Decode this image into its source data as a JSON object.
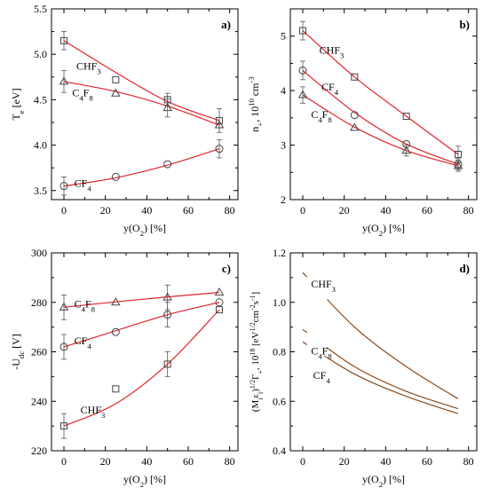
{
  "chart_data": [
    {
      "type": "scatter",
      "panel": "a)",
      "ylabel_main": "T",
      "ylabel_sub": "e",
      "ylabel_unit": " [eV]",
      "xlabel_main": "y(O",
      "xlabel_sub": "2",
      "xlabel_unit": ") [%]",
      "xlim": [
        -6,
        84
      ],
      "ylim": [
        3.4,
        5.5
      ],
      "xticks": [
        0,
        20,
        40,
        60,
        80
      ],
      "xtick_labels": [
        "0",
        "20",
        "40",
        "60",
        "80"
      ],
      "yticks": [
        3.5,
        4.0,
        4.5,
        5.0,
        5.5
      ],
      "ytick_labels": [
        "3.5",
        "4.0",
        "4.5",
        "5.0",
        "5.5"
      ],
      "series": [
        {
          "marker": "square",
          "label_main": "CHF",
          "label_sub": "3",
          "label_at": [
            6,
            4.83
          ],
          "x": [
            0,
            25,
            50,
            75
          ],
          "y": [
            5.15,
            4.72,
            4.5,
            4.27
          ],
          "err": [
            0.1,
            0,
            0.07,
            0.13
          ],
          "fit": [
            [
              0,
              5.15
            ],
            [
              25,
              4.8
            ],
            [
              50,
              4.48
            ],
            [
              75,
              4.27
            ]
          ]
        },
        {
          "marker": "triangle",
          "label_main": "C",
          "label_sub": "4",
          "label_main2": "F",
          "label_sub2": "8",
          "label_at": [
            4,
            4.54
          ],
          "x": [
            0,
            25,
            50,
            75
          ],
          "y": [
            4.7,
            4.57,
            4.41,
            4.22
          ],
          "err": [
            0.12,
            0,
            0.1,
            0
          ],
          "fit": [
            [
              0,
              4.7
            ],
            [
              25,
              4.59
            ],
            [
              50,
              4.43
            ],
            [
              75,
              4.22
            ]
          ]
        },
        {
          "marker": "circle",
          "label_main": "CF",
          "label_sub": "4",
          "label_at": [
            5,
            3.54
          ],
          "x": [
            0,
            25,
            50,
            75
          ],
          "y": [
            3.55,
            3.65,
            3.79,
            3.96
          ],
          "err": [
            0.1,
            0,
            0,
            0.1
          ],
          "fit": [
            [
              0,
              3.55
            ],
            [
              25,
              3.64
            ],
            [
              50,
              3.78
            ],
            [
              75,
              3.96
            ]
          ]
        }
      ]
    },
    {
      "type": "scatter",
      "panel": "b)",
      "ylabel_main": "n",
      "ylabel_sub": "+",
      "ylabel_unit": ", 10",
      "ylabel_sup": "10",
      "ylabel_unit2": " cm",
      "ylabel_sup2": "-3",
      "xlabel_main": "y(O",
      "xlabel_sub": "2",
      "xlabel_unit": ") [%]",
      "xlim": [
        -6,
        84
      ],
      "ylim": [
        2.0,
        5.5
      ],
      "xticks": [
        0,
        20,
        40,
        60,
        80
      ],
      "xtick_labels": [
        "0",
        "20",
        "40",
        "60",
        "80"
      ],
      "yticks": [
        2,
        3,
        4,
        5
      ],
      "ytick_labels": [
        "2",
        "3",
        "4",
        "5"
      ],
      "series": [
        {
          "marker": "square",
          "label_main": "CHF",
          "label_sub": "3",
          "label_at": [
            8,
            4.68
          ],
          "x": [
            0,
            25,
            50,
            75
          ],
          "y": [
            5.1,
            4.25,
            3.53,
            2.83
          ],
          "err": [
            0.17,
            0,
            0,
            0.15
          ],
          "fit": [
            [
              0,
              5.1
            ],
            [
              25,
              4.25
            ],
            [
              50,
              3.53
            ],
            [
              75,
              2.83
            ]
          ]
        },
        {
          "marker": "circle",
          "label_main": "CF",
          "label_sub": "4",
          "label_at": [
            9,
            4.0
          ],
          "x": [
            0,
            25,
            50,
            75
          ],
          "y": [
            4.37,
            3.55,
            3.02,
            2.65
          ],
          "err": [
            0.17,
            0,
            0,
            0.1
          ],
          "fit": [
            [
              0,
              4.37
            ],
            [
              25,
              3.6
            ],
            [
              50,
              3.02
            ],
            [
              75,
              2.65
            ]
          ]
        },
        {
          "marker": "triangle",
          "label_main": "C",
          "label_sub": "4",
          "label_main2": "F",
          "label_sub2": "8",
          "label_at": [
            4,
            3.5
          ],
          "x": [
            0,
            25,
            50,
            75
          ],
          "y": [
            3.92,
            3.32,
            2.9,
            2.62
          ],
          "err": [
            0.15,
            0,
            0.1,
            0.1
          ],
          "fit": [
            [
              0,
              3.92
            ],
            [
              25,
              3.33
            ],
            [
              50,
              2.9
            ],
            [
              75,
              2.62
            ]
          ]
        }
      ]
    },
    {
      "type": "scatter",
      "panel": "c)",
      "ylabel_main": "-U",
      "ylabel_sub": "dc",
      "ylabel_unit": " [V]",
      "xlabel_main": "y(O",
      "xlabel_sub": "2",
      "xlabel_unit": ") [%]",
      "xlim": [
        -6,
        84
      ],
      "ylim": [
        220,
        300
      ],
      "xticks": [
        0,
        20,
        40,
        60,
        80
      ],
      "xtick_labels": [
        "0",
        "20",
        "40",
        "60",
        "80"
      ],
      "yticks": [
        220,
        240,
        260,
        280,
        300
      ],
      "ytick_labels": [
        "220",
        "240",
        "260",
        "280",
        "300"
      ],
      "series": [
        {
          "marker": "triangle",
          "label_main": "C",
          "label_sub": "4",
          "label_main2": "F",
          "label_sub2": "8",
          "label_at": [
            5,
            278
          ],
          "x": [
            0,
            25,
            50,
            75
          ],
          "y": [
            278,
            280,
            282,
            284
          ],
          "err": [
            5,
            0,
            5,
            0
          ],
          "fit": [
            [
              0,
              278
            ],
            [
              25,
              280.2
            ],
            [
              50,
              282.2
            ],
            [
              75,
              284
            ]
          ]
        },
        {
          "marker": "circle",
          "label_main": "CF",
          "label_sub": "4",
          "label_at": [
            5,
            263
          ],
          "x": [
            0,
            25,
            50,
            75
          ],
          "y": [
            262,
            268,
            275,
            280
          ],
          "err": [
            5,
            0,
            5,
            0
          ],
          "fit": [
            [
              0,
              262
            ],
            [
              25,
              268.5
            ],
            [
              50,
              275
            ],
            [
              75,
              280
            ]
          ]
        },
        {
          "marker": "square",
          "label_main": "CHF",
          "label_sub": "3",
          "label_at": [
            8,
            235
          ],
          "x": [
            0,
            25,
            50,
            75
          ],
          "y": [
            230,
            245,
            255,
            277
          ],
          "err": [
            5,
            0,
            5,
            0
          ],
          "fit": [
            [
              0,
              230
            ],
            [
              25,
              239
            ],
            [
              50,
              255
            ],
            [
              75,
              277
            ]
          ]
        }
      ]
    },
    {
      "type": "line",
      "panel": "d)",
      "ylabel_main": "(M",
      "ylabel_sub": "i",
      "ylabel_main2": "ε",
      "ylabel_sub2": "i",
      "ylabel_unit": ")",
      "ylabel_sup": "1/2",
      "ylabel_unit2": "Γ",
      "ylabel_sub3": "+",
      "ylabel_unit3": ", 10",
      "ylabel_sup3": "18",
      "ylabel_unit4": " [eV",
      "ylabel_sup4": "1/2",
      "ylabel_unit5": "cm",
      "ylabel_sup5": "-2",
      "ylabel_unit6": "s",
      "ylabel_sup6": "-1",
      "ylabel_unit7": "]",
      "xlabel_main": "y(O",
      "xlabel_sub": "2",
      "xlabel_unit": ") [%]",
      "xlim": [
        -6,
        84
      ],
      "ylim": [
        0.4,
        1.2
      ],
      "xticks": [
        0,
        20,
        40,
        60,
        80
      ],
      "xtick_labels": [
        "0",
        "20",
        "40",
        "60",
        "80"
      ],
      "yticks": [
        0.4,
        0.6,
        0.8,
        1.0,
        1.2
      ],
      "ytick_labels": [
        "0.4",
        "0.6",
        "0.8",
        "1.0",
        "1.2"
      ],
      "series": [
        {
          "label_main": "CHF",
          "label_sub": "3",
          "label_at": [
            4,
            1.06
          ],
          "gap": [
            3,
            18
          ],
          "fit": [
            [
              0,
              1.12
            ],
            [
              25,
              0.9
            ],
            [
              50,
              0.74
            ],
            [
              75,
              0.61
            ]
          ]
        },
        {
          "label_main": "C",
          "label_sub": "4",
          "label_main2": "F",
          "label_sub2": "8",
          "label_at": [
            4,
            0.79
          ],
          "gap": [
            3,
            17
          ],
          "fit": [
            [
              0,
              0.89
            ],
            [
              25,
              0.74
            ],
            [
              50,
              0.64
            ],
            [
              75,
              0.57
            ]
          ]
        },
        {
          "label_main": "CF",
          "label_sub": "4",
          "label_at": [
            5,
            0.69
          ],
          "gap": [
            3,
            15
          ],
          "fit": [
            [
              0,
              0.84
            ],
            [
              25,
              0.71
            ],
            [
              50,
              0.62
            ],
            [
              75,
              0.55
            ]
          ]
        }
      ]
    }
  ]
}
